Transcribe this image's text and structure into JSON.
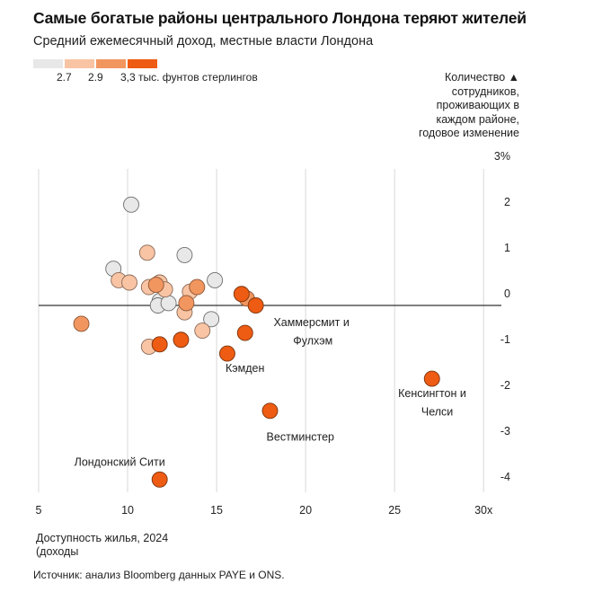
{
  "title": "Самые богатые районы центрального Лондона теряют жителей",
  "subtitle": "Средний ежемесячный доход, местные власти Лондона",
  "legend": {
    "label_1": "2.7",
    "label_2": "2.9",
    "label_3": "3,3 тыс. фунтов стерлингов",
    "colors": [
      "#e8e8e8",
      "#f8c4a4",
      "#f29660",
      "#ee5b12"
    ]
  },
  "source": "Источник: анализ Bloomberg данных PAYE и ONS.",
  "chart_data": {
    "type": "scatter",
    "title": "Самые богатые районы центрального Лондона теряют жителей",
    "subtitle": "Средний ежемесячный доход, местные власти Лондона",
    "xlabel": "Доступность жилья, 2024 (доходы",
    "ylabel": "Количество ▲ сотрудников, проживающих в каждом районе, годовое изменение",
    "xlim": [
      5,
      31
    ],
    "ylim": [
      -4.3,
      3.0
    ],
    "x_ticks": [
      "5",
      "10",
      "15",
      "20",
      "25",
      "30x"
    ],
    "x_tick_values": [
      5,
      10,
      15,
      20,
      25,
      30
    ],
    "y_ticks": [
      "3%",
      "2",
      "1",
      "0",
      "-1",
      "-2",
      "-3",
      "-4"
    ],
    "y_tick_values": [
      3,
      2,
      1,
      0,
      -1,
      -2,
      -3,
      -4
    ],
    "grid": "vertical",
    "points": [
      {
        "x": 10.2,
        "y": 2.2,
        "tier": 0
      },
      {
        "x": 13.2,
        "y": 1.1,
        "tier": 0
      },
      {
        "x": 9.2,
        "y": 0.8,
        "tier": 0
      },
      {
        "x": 14.9,
        "y": 0.55,
        "tier": 0
      },
      {
        "x": 11.8,
        "y": 0.1,
        "tier": 0
      },
      {
        "x": 11.7,
        "y": 0.0,
        "tier": 0
      },
      {
        "x": 12.3,
        "y": 0.05,
        "tier": 0
      },
      {
        "x": 14.7,
        "y": -0.3,
        "tier": 0
      },
      {
        "x": 11.1,
        "y": 1.15,
        "tier": 1
      },
      {
        "x": 9.5,
        "y": 0.55,
        "tier": 1
      },
      {
        "x": 10.1,
        "y": 0.5,
        "tier": 1
      },
      {
        "x": 11.2,
        "y": 0.4,
        "tier": 1
      },
      {
        "x": 11.8,
        "y": 0.5,
        "tier": 1
      },
      {
        "x": 12.1,
        "y": 0.35,
        "tier": 1
      },
      {
        "x": 13.5,
        "y": 0.3,
        "tier": 1
      },
      {
        "x": 13.2,
        "y": -0.15,
        "tier": 1
      },
      {
        "x": 14.2,
        "y": -0.55,
        "tier": 1
      },
      {
        "x": 11.2,
        "y": -0.9,
        "tier": 1
      },
      {
        "x": 7.4,
        "y": -0.4,
        "tier": 2
      },
      {
        "x": 11.6,
        "y": 0.45,
        "tier": 2
      },
      {
        "x": 13.3,
        "y": 0.05,
        "tier": 2
      },
      {
        "x": 13.9,
        "y": 0.4,
        "tier": 2
      },
      {
        "x": 16.7,
        "y": 0.15,
        "tier": 2
      },
      {
        "x": 11.8,
        "y": -0.85,
        "tier": 3
      },
      {
        "x": 13.0,
        "y": -0.75,
        "tier": 3
      },
      {
        "x": 16.4,
        "y": 0.25,
        "tier": 3
      },
      {
        "x": 17.2,
        "y": 0.0,
        "tier": 3
      },
      {
        "x": 16.6,
        "y": -0.6,
        "tier": 3
      },
      {
        "x": 15.6,
        "y": -1.05,
        "tier": 3
      },
      {
        "x": 18.0,
        "y": -2.3,
        "tier": 3
      },
      {
        "x": 27.1,
        "y": -1.6,
        "tier": 3
      },
      {
        "x": 11.8,
        "y": -3.8,
        "tier": 3
      }
    ],
    "annotations": [
      {
        "text": "Хаммерсмит и",
        "x": 18.2,
        "y": -0.45
      },
      {
        "text": "Фулхэм",
        "x": 19.3,
        "y": -0.85
      },
      {
        "text": "Кэмден",
        "x": 15.5,
        "y": -1.45
      },
      {
        "text": "Кенсингтон и",
        "x": 25.2,
        "y": -2.0
      },
      {
        "text": "Челси",
        "x": 26.5,
        "y": -2.4
      },
      {
        "text": "Вестминстер",
        "x": 17.8,
        "y": -2.95
      },
      {
        "text": "Лондонский Сити",
        "x": 7.0,
        "y": -3.5
      }
    ]
  }
}
